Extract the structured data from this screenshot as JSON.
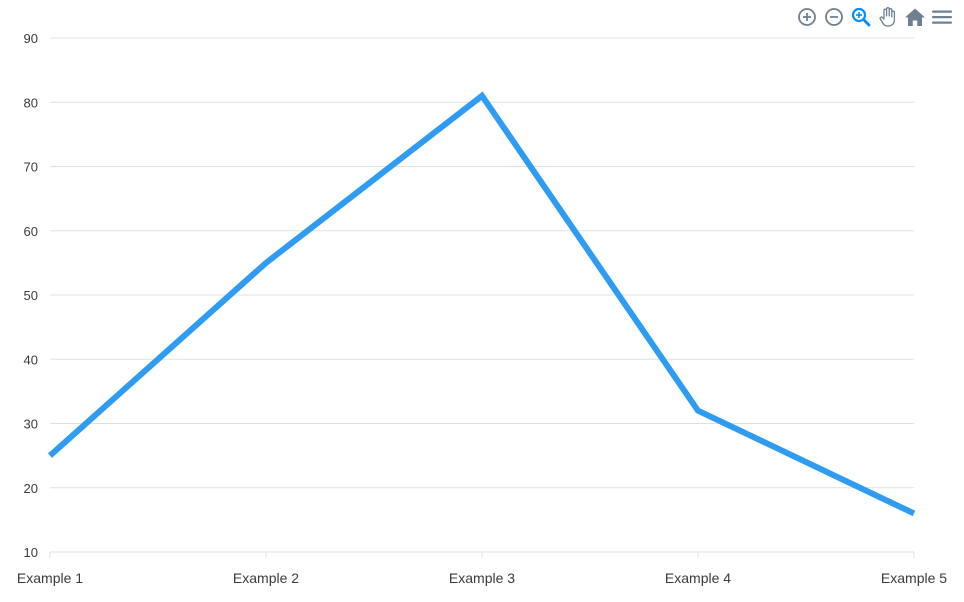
{
  "toolbar": {
    "icons": [
      "zoom-in-icon",
      "zoom-out-icon",
      "selection-zoom-icon",
      "pan-hand-icon",
      "home-reset-icon",
      "menu-icon"
    ],
    "icon_color": "#6e8192",
    "active_icon_color": "#008ffb"
  },
  "chart_data": {
    "type": "line",
    "categories": [
      "Example 1",
      "Example 2",
      "Example 3",
      "Example 4",
      "Example 5"
    ],
    "series": [
      {
        "values": [
          25,
          55,
          81,
          32,
          16
        ],
        "color": "#2e9cf2"
      }
    ],
    "ylim": [
      10,
      90
    ],
    "yticks": [
      "90",
      "80",
      "70",
      "60",
      "50",
      "40",
      "30",
      "20",
      "10"
    ],
    "grid": true,
    "legend": "none",
    "title": "",
    "xlabel": "",
    "ylabel": ""
  }
}
